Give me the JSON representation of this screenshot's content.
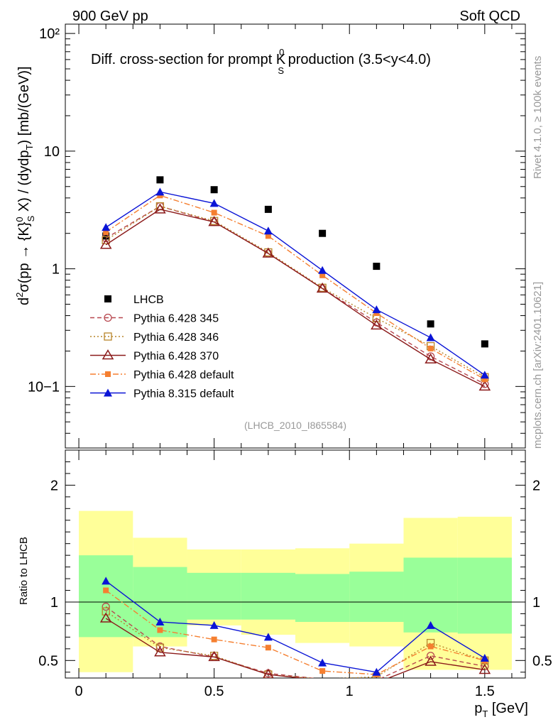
{
  "header": {
    "left": "900 GeV pp",
    "right": "Soft QCD",
    "side_top": "Rivet 4.1.0, ≥ 100k events",
    "side_bottom": "mcplots.cern.ch [arXiv:2401.10621]",
    "analysis": "(LHCB_2010_I865584)"
  },
  "title": {
    "main": "Diff. cross-section for prompt K",
    "sup": "0",
    "sub": "S",
    "suffix": " production (3.5<y<4.0)"
  },
  "axes": {
    "ylabel_main": "d²σ(pp → {K}⁰S X) / (dydpT) [mb/(GeV)]",
    "ylabel_ratio": "Ratio to LHCB",
    "xlabel": "p",
    "xlabel_sub": "T",
    "xlabel_unit": " [GeV]",
    "x_ticks": [
      "0",
      "0.5",
      "1",
      "1.5"
    ],
    "y_ticks_main": [
      "10−1",
      "1",
      "10",
      "10²"
    ],
    "y_ticks_ratio": [
      "0.5",
      "1",
      "2"
    ]
  },
  "colors": {
    "lhcb": "#000000",
    "p345": "#b8474f",
    "p346": "#b8862b",
    "p370": "#8b1a1a",
    "p6def": "#f57f30",
    "p8def": "#0a14d6",
    "band_inner": "#99ff99",
    "band_outer": "#ffff99"
  },
  "chart_data": {
    "type": "scatter",
    "x": [
      0.1,
      0.3,
      0.5,
      0.7,
      0.9,
      1.1,
      1.3,
      1.5
    ],
    "x_bin_edges": [
      0.0,
      0.2,
      0.4,
      0.6,
      0.8,
      1.0,
      1.2,
      1.4,
      1.6
    ],
    "xlim": [
      -0.05,
      1.65
    ],
    "ylim_main": [
      0.03,
      120
    ],
    "ylim_ratio": [
      0.35,
      2.3
    ],
    "series": [
      {
        "name": "LHCB",
        "key": "lhcb",
        "values": [
          1.9,
          5.7,
          4.7,
          3.2,
          2.0,
          1.05,
          0.34,
          0.23
        ]
      },
      {
        "name": "Pythia 6.428 345",
        "key": "p345",
        "values": [
          1.82,
          3.4,
          2.5,
          1.35,
          0.68,
          0.35,
          0.18,
          0.105
        ],
        "ratio": [
          0.96,
          0.62,
          0.53,
          0.39,
          0.34,
          0.33,
          0.54,
          0.45
        ]
      },
      {
        "name": "Pythia 6.428 346",
        "key": "p346",
        "values": [
          1.75,
          3.4,
          2.55,
          1.38,
          0.69,
          0.38,
          0.22,
          0.12
        ],
        "ratio": [
          0.92,
          0.61,
          0.54,
          0.38,
          0.34,
          0.36,
          0.65,
          0.5
        ]
      },
      {
        "name": "Pythia 6.428 370",
        "key": "p370",
        "values": [
          1.6,
          3.2,
          2.5,
          1.35,
          0.68,
          0.33,
          0.17,
          0.1
        ],
        "ratio": [
          0.86,
          0.57,
          0.53,
          0.38,
          0.33,
          0.31,
          0.49,
          0.42
        ]
      },
      {
        "name": "Pythia 6.428 default",
        "key": "p6def",
        "values": [
          2.05,
          4.2,
          3.0,
          1.9,
          0.88,
          0.42,
          0.21,
          0.115
        ],
        "ratio": [
          1.1,
          0.76,
          0.68,
          0.61,
          0.41,
          0.38,
          0.62,
          0.5
        ]
      },
      {
        "name": "Pythia 8.315 default",
        "key": "p8def",
        "values": [
          2.25,
          4.5,
          3.6,
          2.1,
          0.97,
          0.45,
          0.26,
          0.125
        ],
        "ratio": [
          1.18,
          0.83,
          0.8,
          0.7,
          0.48,
          0.4,
          0.8,
          0.52
        ]
      }
    ],
    "band_inner": [
      [
        0.7,
        1.4
      ],
      [
        0.7,
        1.3
      ],
      [
        0.85,
        1.25
      ],
      [
        0.85,
        1.25
      ],
      [
        0.83,
        1.24
      ],
      [
        0.83,
        1.26
      ],
      [
        0.74,
        1.38
      ],
      [
        0.73,
        1.38
      ]
    ],
    "band_outer": [
      [
        0.4,
        1.78
      ],
      [
        0.62,
        1.55
      ],
      [
        0.8,
        1.45
      ],
      [
        0.72,
        1.45
      ],
      [
        0.65,
        1.46
      ],
      [
        0.62,
        1.5
      ],
      [
        0.42,
        1.72
      ],
      [
        0.42,
        1.73
      ]
    ]
  },
  "legend": {
    "items": [
      "LHCB",
      "Pythia 6.428 345",
      "Pythia 6.428 346",
      "Pythia 6.428 370",
      "Pythia 6.428 default",
      "Pythia 8.315 default"
    ]
  }
}
